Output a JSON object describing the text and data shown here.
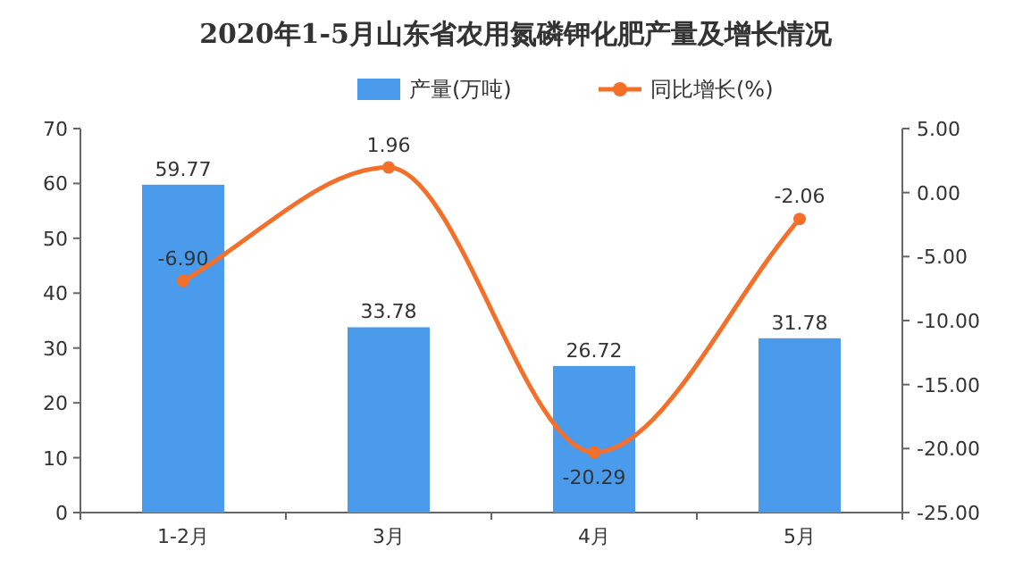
{
  "chart_data": {
    "type": "bar",
    "title": "2020年1-5月山东省农用氮磷钾化肥产量及增长情况",
    "categories": [
      "1-2月",
      "3月",
      "4月",
      "5月"
    ],
    "series": [
      {
        "name": "产量(万吨)",
        "color": "#4a9bec",
        "values": [
          59.77,
          33.78,
          26.72,
          31.78
        ]
      },
      {
        "name": "同比增长(%)",
        "type": "line",
        "axis": "y2",
        "color": "#f4702a",
        "values": [
          -6.9,
          1.96,
          -20.29,
          -2.06
        ],
        "value_labels": [
          "-6.90",
          "1.96",
          "-20.29",
          "-2.06"
        ]
      }
    ],
    "ylim": [
      0,
      70
    ],
    "yticks": [
      0,
      10,
      20,
      30,
      40,
      50,
      60,
      70
    ],
    "y2lim": [
      -25,
      5
    ],
    "y2ticks": [
      {
        "value": -25,
        "label": "-25.00"
      },
      {
        "value": -20,
        "label": "-20.00"
      },
      {
        "value": -15,
        "label": "-15.00"
      },
      {
        "value": -10,
        "label": "-10.00"
      },
      {
        "value": -5,
        "label": "-5.00"
      },
      {
        "value": 0,
        "label": "0.00"
      },
      {
        "value": 5,
        "label": "5.00"
      }
    ],
    "data_labels": true,
    "legend": "top",
    "marker": "circle",
    "grid": false
  }
}
